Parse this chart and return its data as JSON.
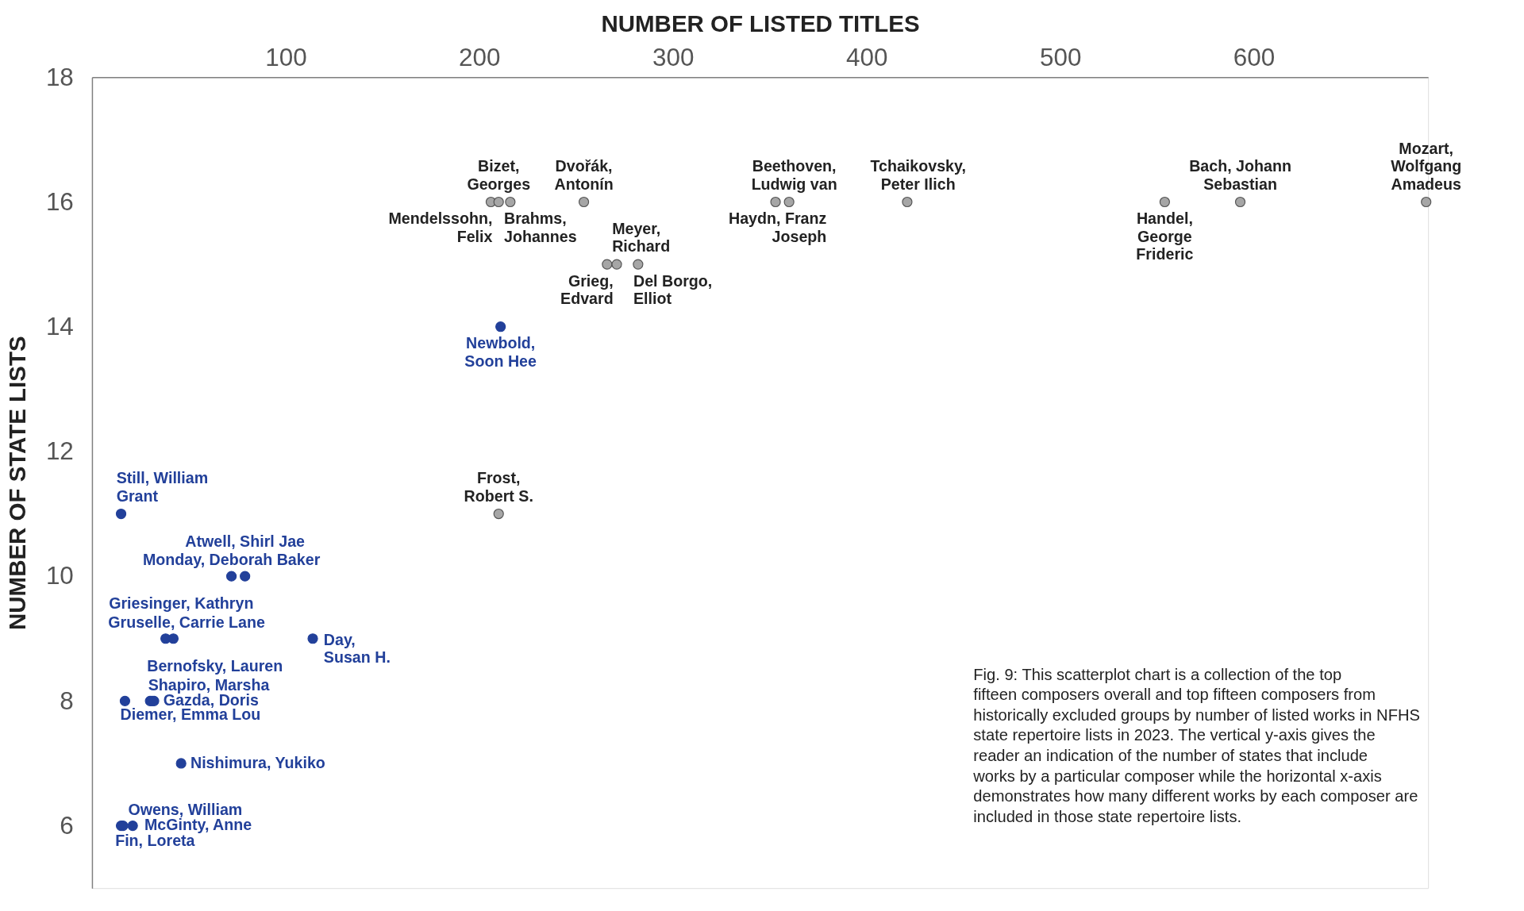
{
  "chart_data": {
    "type": "scatter",
    "xlabel": "NUMBER OF LISTED TITLES",
    "ylabel": "NUMBER OF STATE LISTS",
    "xlim": [
      0,
      690
    ],
    "xticks": [
      100,
      200,
      300,
      400,
      500,
      600
    ],
    "ylim": [
      5,
      18
    ],
    "yticks": [
      6,
      8,
      10,
      12,
      14,
      16,
      18
    ],
    "grid": false,
    "legend": false,
    "marker": "circle",
    "series": [
      {
        "color": "#a6a6a6",
        "x": [
          206,
          210,
          216,
          254,
          266,
          271,
          282,
          353,
          360,
          421,
          554,
          593,
          689,
          210
        ],
        "values": [
          16,
          16,
          16,
          16,
          15,
          15,
          15,
          16,
          16,
          16,
          16,
          16,
          16,
          11
        ]
      },
      {
        "color": "#22409a",
        "x": [
          211,
          15,
          79,
          72,
          38,
          42,
          114,
          17,
          30,
          31,
          32,
          46,
          15,
          21,
          16
        ],
        "values": [
          14,
          11,
          10,
          10,
          9,
          9,
          9,
          8,
          8,
          8,
          8,
          7,
          6,
          6,
          6
        ]
      }
    ],
    "annotations": [
      {
        "text": "Mendelssohn,\nFelix",
        "x": 206,
        "y": 16
      },
      {
        "text": "Bizet,\nGeorges",
        "x": 210,
        "y": 16
      },
      {
        "text": "Brahms,\nJohannes",
        "x": 216,
        "y": 16
      },
      {
        "text": "Dvořák,\nAntonín",
        "x": 254,
        "y": 16
      },
      {
        "text": "Grieg,\nEdvard",
        "x": 266,
        "y": 15
      },
      {
        "text": "Meyer,\nRichard",
        "x": 271,
        "y": 15
      },
      {
        "text": "Del Borgo,\nElliot",
        "x": 282,
        "y": 15
      },
      {
        "text": "Beethoven,\nLudwig van",
        "x": 353,
        "y": 16
      },
      {
        "text": "Haydn, Franz\nJoseph",
        "x": 360,
        "y": 16
      },
      {
        "text": "Tchaikovsky,\nPeter Ilich",
        "x": 421,
        "y": 16
      },
      {
        "text": "Handel,\nGeorge\nFrideric",
        "x": 554,
        "y": 16
      },
      {
        "text": "Bach, Johann\nSebastian",
        "x": 593,
        "y": 16
      },
      {
        "text": "Mozart,\nWolfgang\nAmadeus",
        "x": 689,
        "y": 16
      },
      {
        "text": "Frost,\nRobert S.",
        "x": 210,
        "y": 11
      },
      {
        "text": "Newbold,\nSoon Hee",
        "x": 211,
        "y": 14
      },
      {
        "text": "Still, William\nGrant",
        "x": 15,
        "y": 11
      },
      {
        "text": "Atwell, Shirl Jae",
        "x": 79,
        "y": 10
      },
      {
        "text": "Monday, Deborah Baker",
        "x": 72,
        "y": 10
      },
      {
        "text": "Griesinger, Kathryn",
        "x": 38,
        "y": 9
      },
      {
        "text": "Gruselle, Carrie Lane",
        "x": 42,
        "y": 9
      },
      {
        "text": "Day,\nSusan H.",
        "x": 114,
        "y": 9
      },
      {
        "text": "Diemer, Emma Lou",
        "x": 17,
        "y": 8
      },
      {
        "text": "Bernofsky, Lauren",
        "x": 30,
        "y": 8
      },
      {
        "text": "Shapiro, Marsha",
        "x": 31,
        "y": 8
      },
      {
        "text": "Gazda, Doris",
        "x": 32,
        "y": 8
      },
      {
        "text": "Nishimura, Yukiko",
        "x": 46,
        "y": 7
      },
      {
        "text": "Owens, William",
        "x": 15,
        "y": 6
      },
      {
        "text": "McGinty, Anne",
        "x": 21,
        "y": 6
      },
      {
        "text": "Fin, Loreta",
        "x": 16,
        "y": 6
      },
      "Fig. 9: This scatterplot chart is a collection of the top fifteen composers overall and top fifteen composers from historically excluded groups by number of listed works in NFHS state repertoire lists in 2023. The vertical y-axis gives the reader an indication of the number of states that include works by a particular composer while the horizontal x-axis demonstrates how many different works by each composer are included in those state repertoire lists."
    ]
  }
}
